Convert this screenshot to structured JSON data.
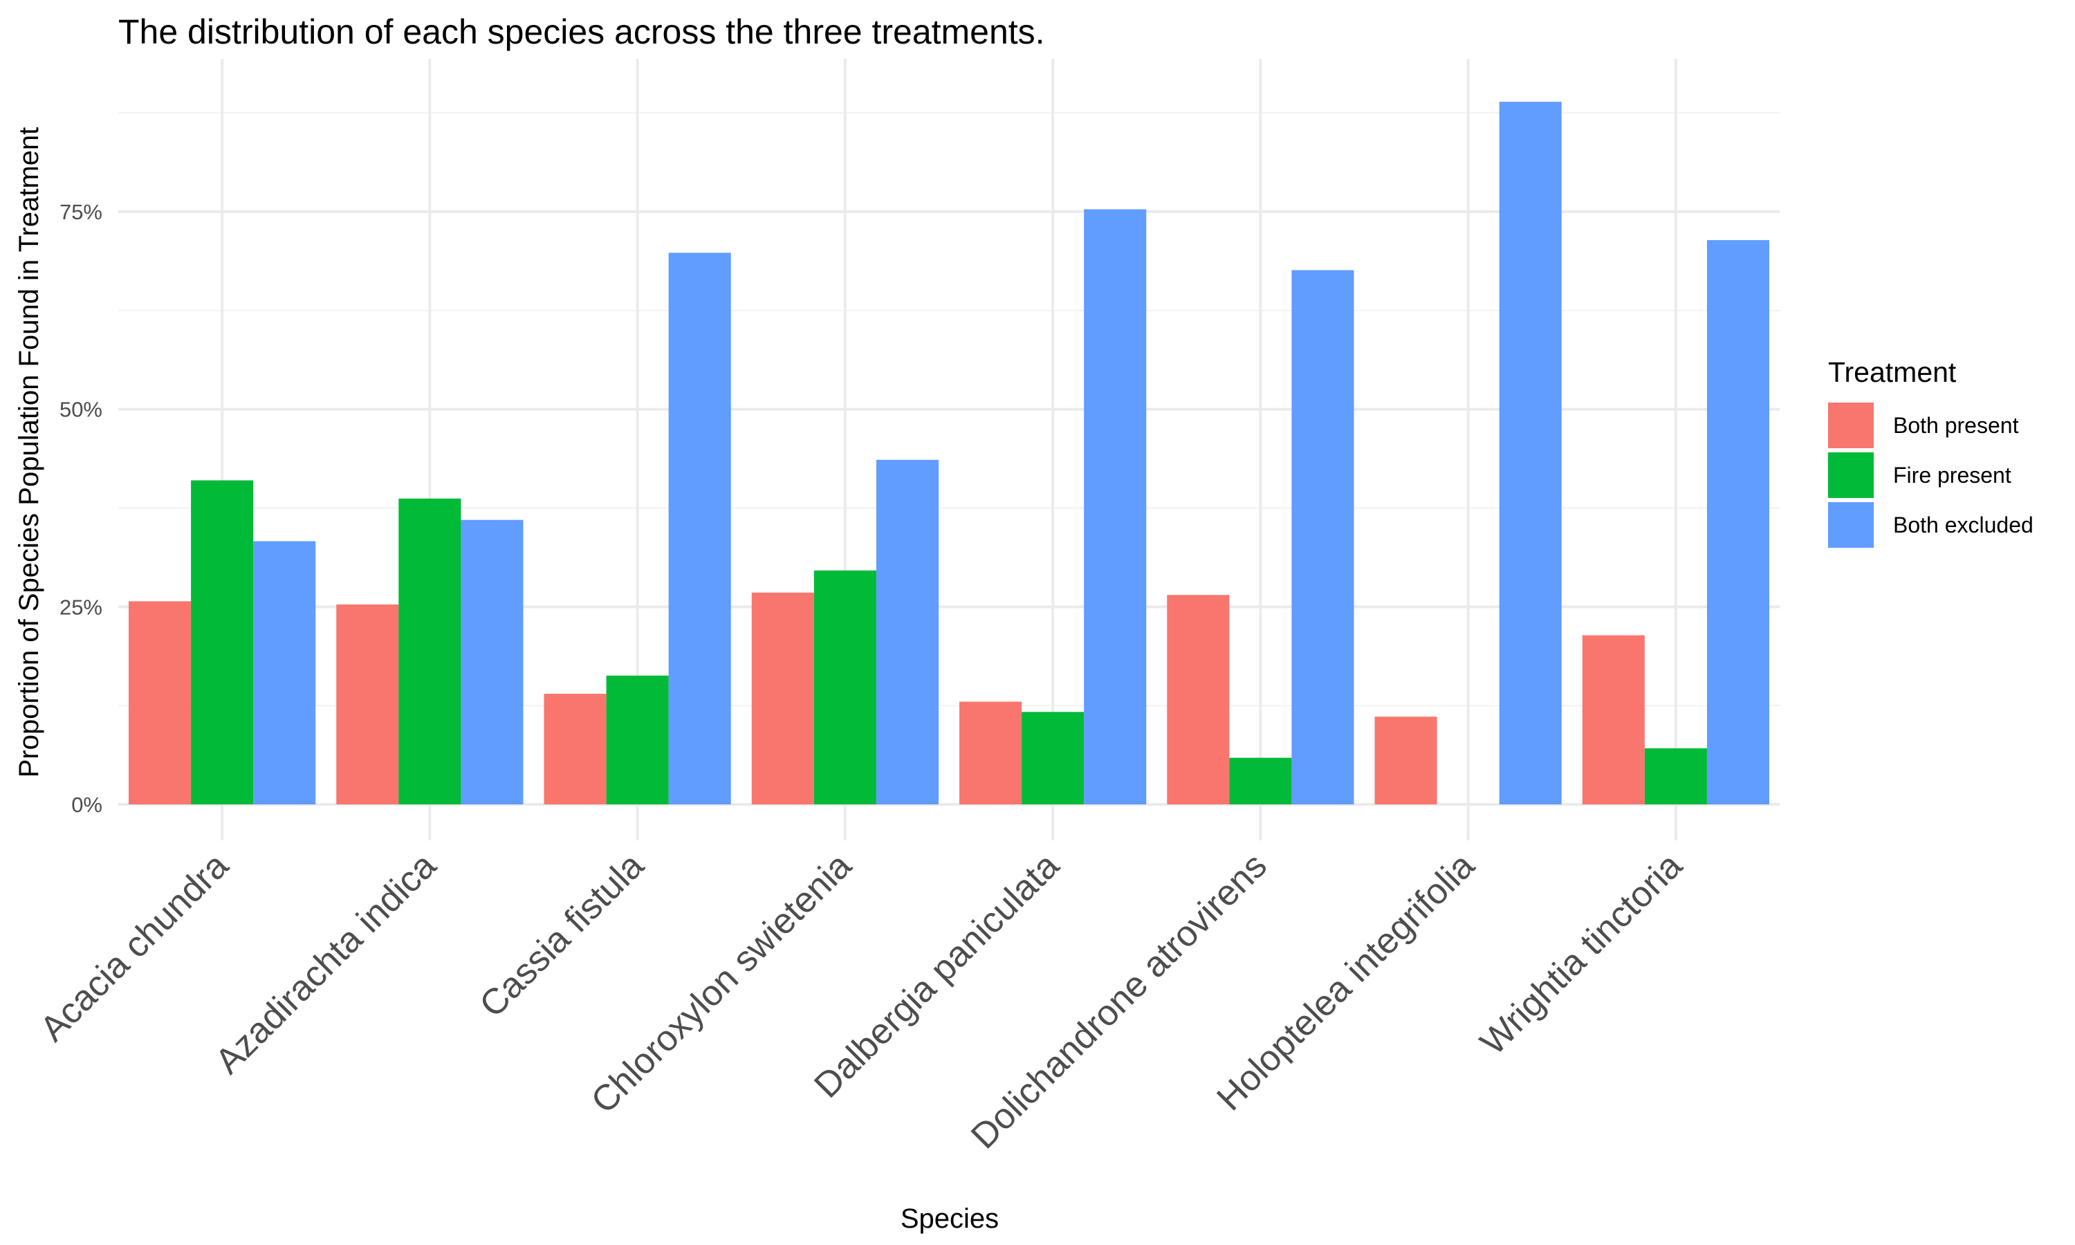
{
  "chart_data": {
    "type": "bar",
    "title": "The distribution of each species across the three treatments.",
    "xlabel": "Species",
    "ylabel": "Proportion of Species Population Found in Treatment",
    "categories": [
      "Acacia chundra",
      "Azadirachta indica",
      "Cassia fistula",
      "Chloroxylon swietenia",
      "Dalbergia paniculata",
      "Dolichandrone atrovirens",
      "Holoptelea integrifolia",
      "Wrightia tinctoria"
    ],
    "series": [
      {
        "name": "Both present",
        "color": "#F8766D",
        "values": [
          0.257,
          0.253,
          0.14,
          0.268,
          0.13,
          0.265,
          0.111,
          0.214
        ]
      },
      {
        "name": "Fire present",
        "color": "#00BA38",
        "values": [
          0.41,
          0.387,
          0.163,
          0.296,
          0.117,
          0.059,
          0.0,
          0.071
        ]
      },
      {
        "name": "Both excluded",
        "color": "#619CFF",
        "values": [
          0.333,
          0.36,
          0.698,
          0.436,
          0.753,
          0.676,
          0.889,
          0.714
        ]
      }
    ],
    "ylim": [
      0,
      0.93
    ],
    "y_ticks": [
      {
        "value": 0,
        "label": "0%"
      },
      {
        "value": 0.25,
        "label": "25%"
      },
      {
        "value": 0.5,
        "label": "50%"
      },
      {
        "value": 0.75,
        "label": "75%"
      }
    ],
    "grid": true,
    "legend": {
      "title": "Treatment",
      "position": "right"
    }
  }
}
